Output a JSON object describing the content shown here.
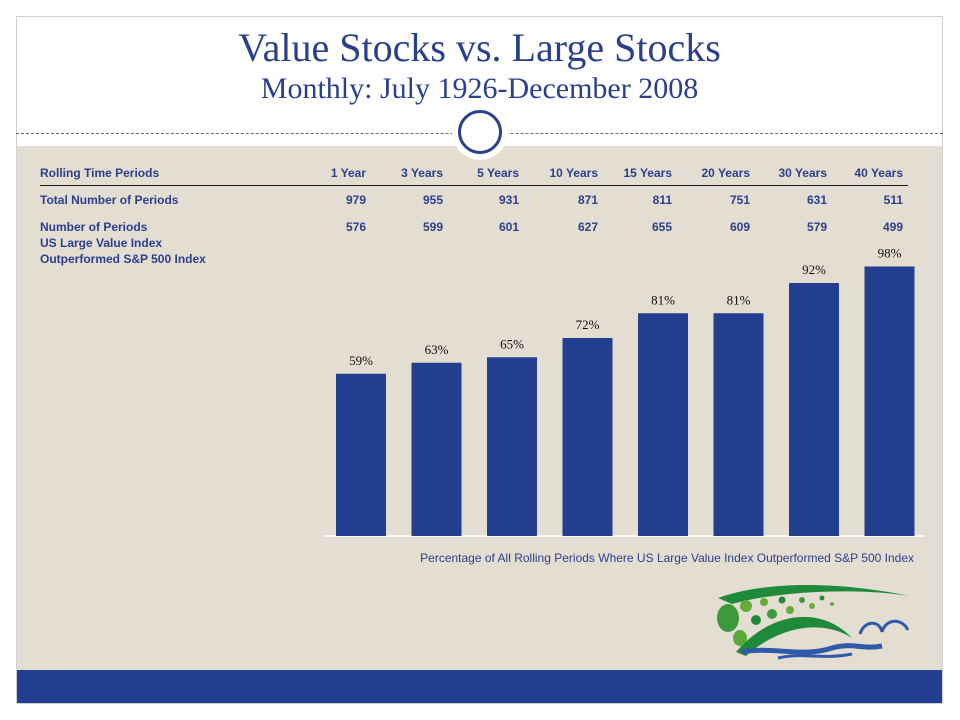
{
  "header": {
    "title": "Value Stocks vs. Large Stocks",
    "subtitle": "Monthly: July 1926-December 2008"
  },
  "table": {
    "header_label": "Rolling Time Periods",
    "columns": [
      "1 Year",
      "3 Years",
      "5 Years",
      "10 Years",
      "15 Years",
      "20 Years",
      "30 Years",
      "40 Years"
    ],
    "rows": [
      {
        "label_lines": [
          "Total Number of Periods"
        ],
        "values": [
          "979",
          "955",
          "931",
          "871",
          "811",
          "751",
          "631",
          "511"
        ]
      },
      {
        "label_lines": [
          "Number of Periods",
          "US Large Value Index",
          "Outperformed  S&P 500 Index"
        ],
        "values": [
          "576",
          "599",
          "601",
          "627",
          "655",
          "609",
          "579",
          "499"
        ]
      }
    ]
  },
  "chart_data": {
    "type": "bar",
    "categories": [
      "1 Year",
      "3 Years",
      "5 Years",
      "10 Years",
      "15 Years",
      "20 Years",
      "30 Years",
      "40 Years"
    ],
    "values": [
      59,
      63,
      65,
      72,
      81,
      81,
      92,
      98
    ],
    "data_labels": [
      "59%",
      "63%",
      "65%",
      "72%",
      "81%",
      "81%",
      "92%",
      "98%"
    ],
    "xlabel": "Percentage of All Rolling Periods Where US Large Value Index Outperformed S&P 500 Index",
    "ylim": [
      0,
      100
    ],
    "grid": false,
    "legend": "none",
    "bar_color": "#233f8f",
    "label_color": "#111111"
  },
  "colors": {
    "title": "#2b3f8c",
    "background": "#e4ddd1",
    "footer": "#233f8f"
  },
  "logo": {
    "icon": "green-dots-wave-logo"
  }
}
